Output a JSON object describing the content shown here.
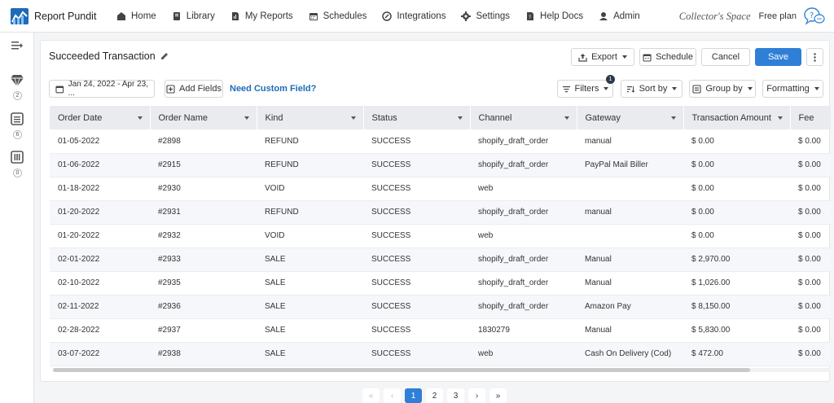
{
  "app": {
    "name": "Report Pundit"
  },
  "nav": [
    {
      "label": "Home",
      "icon": "home-icon"
    },
    {
      "label": "Library",
      "icon": "library-icon"
    },
    {
      "label": "My Reports",
      "icon": "reports-icon"
    },
    {
      "label": "Schedules",
      "icon": "calendar-icon"
    },
    {
      "label": "Integrations",
      "icon": "integrations-icon"
    },
    {
      "label": "Settings",
      "icon": "gear-icon"
    },
    {
      "label": "Help Docs",
      "icon": "help-docs-icon"
    },
    {
      "label": "Admin",
      "icon": "admin-icon"
    }
  ],
  "account": {
    "store": "Collector's Space",
    "plan": "Free plan"
  },
  "sidebar": {
    "badges": [
      "2",
      "6",
      "0"
    ]
  },
  "report": {
    "title": "Succeeded Transaction",
    "actions": {
      "export": "Export",
      "schedule": "Schedule",
      "cancel": "Cancel",
      "save": "Save"
    },
    "date_range": "Jan 24, 2022 - Apr 23, ...",
    "add_fields": "Add Fields",
    "custom_field_link": "Need Custom Field?",
    "filters": "Filters",
    "filters_count": "1",
    "sort_by": "Sort by",
    "group_by": "Group by",
    "formatting": "Formatting"
  },
  "table": {
    "columns": [
      "Order Date",
      "Order Name",
      "Kind",
      "Status",
      "Channel",
      "Gateway",
      "Transaction Amount",
      "Fee"
    ],
    "rows": [
      [
        "01-05-2022",
        "#2898",
        "REFUND",
        "SUCCESS",
        "shopify_draft_order",
        "manual",
        "$ 0.00",
        "$ 0.00"
      ],
      [
        "01-06-2022",
        "#2915",
        "REFUND",
        "SUCCESS",
        "shopify_draft_order",
        "PayPal Mail Biller",
        "$ 0.00",
        "$ 0.00"
      ],
      [
        "01-18-2022",
        "#2930",
        "VOID",
        "SUCCESS",
        "web",
        "",
        "$ 0.00",
        "$ 0.00"
      ],
      [
        "01-20-2022",
        "#2931",
        "REFUND",
        "SUCCESS",
        "shopify_draft_order",
        "manual",
        "$ 0.00",
        "$ 0.00"
      ],
      [
        "01-20-2022",
        "#2932",
        "VOID",
        "SUCCESS",
        "web",
        "",
        "$ 0.00",
        "$ 0.00"
      ],
      [
        "02-01-2022",
        "#2933",
        "SALE",
        "SUCCESS",
        "shopify_draft_order",
        "Manual",
        "$ 2,970.00",
        "$ 0.00"
      ],
      [
        "02-10-2022",
        "#2935",
        "SALE",
        "SUCCESS",
        "shopify_draft_order",
        "Manual",
        "$ 1,026.00",
        "$ 0.00"
      ],
      [
        "02-11-2022",
        "#2936",
        "SALE",
        "SUCCESS",
        "shopify_draft_order",
        "Amazon Pay",
        "$ 8,150.00",
        "$ 0.00"
      ],
      [
        "02-28-2022",
        "#2937",
        "SALE",
        "SUCCESS",
        "1830279",
        "Manual",
        "$ 5,830.00",
        "$ 0.00"
      ],
      [
        "03-07-2022",
        "#2938",
        "SALE",
        "SUCCESS",
        "web",
        "Cash On Delivery (Cod)",
        "$ 472.00",
        "$ 0.00"
      ]
    ]
  },
  "pagination": {
    "first": "«",
    "prev": "‹",
    "pages": [
      "1",
      "2",
      "3"
    ],
    "current": "1",
    "next": "›",
    "last": "»"
  },
  "colors": {
    "primary": "#2f7fd6",
    "header_bg": "#e9ebee",
    "alt_row": "#f5f7fa"
  }
}
